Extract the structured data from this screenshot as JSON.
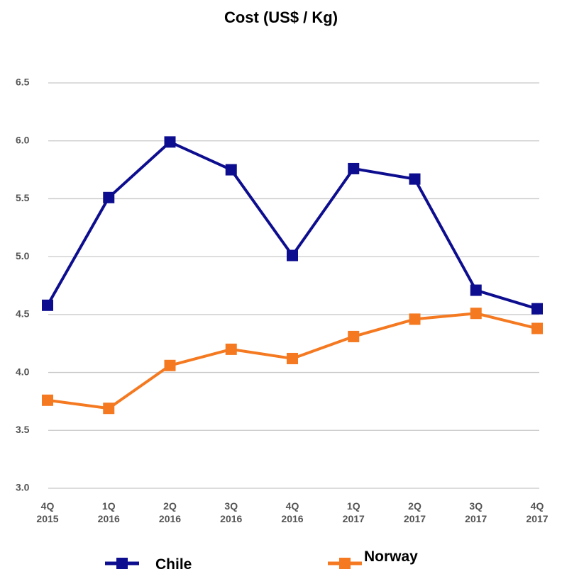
{
  "chart_data": {
    "type": "line",
    "title": "Cost (US$ / Kg)",
    "categories": [
      "4Q 2015",
      "1Q 2016",
      "2Q 2016",
      "3Q 2016",
      "4Q 2016",
      "1Q 2017",
      "2Q 2017",
      "3Q 2017",
      "4Q 2017"
    ],
    "series": [
      {
        "name": "Chile",
        "color": "#0d0d8f",
        "values": [
          4.58,
          5.51,
          5.99,
          5.75,
          5.01,
          5.76,
          5.67,
          4.71,
          4.55
        ]
      },
      {
        "name": "Norway",
        "color": "#f47920",
        "values": [
          3.76,
          3.69,
          4.06,
          4.2,
          4.12,
          4.31,
          4.46,
          4.51,
          4.38
        ]
      }
    ],
    "ylim": [
      3.0,
      6.5
    ],
    "yticks": [
      {
        "value": 3.0,
        "label": "3.0"
      },
      3.5,
      {
        "value": 4.0,
        "label": "4.0"
      },
      4.5,
      {
        "value": 5.0,
        "label": "5.0"
      },
      5.5,
      {
        "value": 6.0,
        "label": "6.0"
      },
      6.5
    ],
    "grid": true,
    "legend": "bottom"
  }
}
